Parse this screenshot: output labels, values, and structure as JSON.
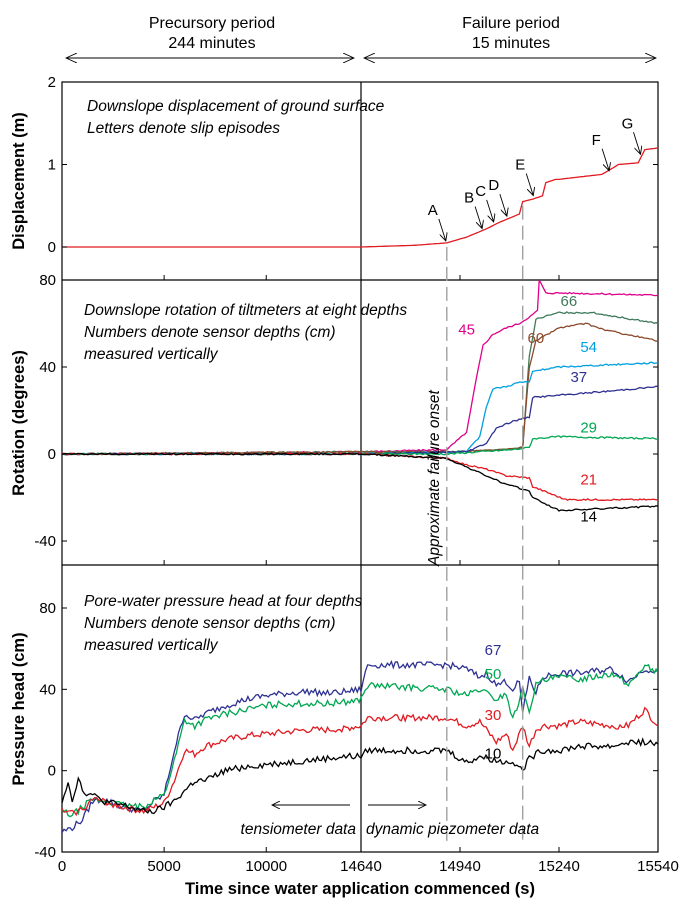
{
  "chart_data": {
    "type": "line",
    "header": {
      "left": {
        "line1": "Precursory period",
        "line2": "244 minutes"
      },
      "right": {
        "line1": "Failure period",
        "line2": "15 minutes"
      }
    },
    "x_axis": {
      "label": "Time since water application commenced (s)",
      "left_segment": {
        "range": [
          0,
          14640
        ],
        "ticks": [
          0,
          5000,
          10000,
          14640
        ]
      },
      "right_segment": {
        "range": [
          14640,
          15540
        ],
        "ticks": [
          14940,
          15240,
          15540
        ]
      }
    },
    "vertical_marker_x": 14640,
    "panels": [
      {
        "id": "displacement",
        "ylabel": "Displacement (m)",
        "ylim": [
          0,
          2
        ],
        "yticks": [
          0,
          1,
          2
        ],
        "annotation": [
          "Downslope displacement of ground surface",
          "Letters denote slip episodes"
        ],
        "series": [
          {
            "name": "displacement",
            "color": "#e01b22",
            "x": [
              0,
              14640,
              14800,
              14900,
              14960,
              15020,
              15060,
              15090,
              15120,
              15130,
              15160,
              15190,
              15200,
              15230,
              15240,
              15260,
              15370,
              15400,
              15420,
              15480,
              15500,
              15540
            ],
            "y": [
              0,
              0,
              0.02,
              0.05,
              0.12,
              0.22,
              0.3,
              0.35,
              0.4,
              0.55,
              0.58,
              0.62,
              0.78,
              0.82,
              0.82,
              0.83,
              0.88,
              0.95,
              1.0,
              1.02,
              1.18,
              1.2
            ]
          }
        ],
        "letters": [
          {
            "label": "A",
            "x": 14900,
            "y": 0.05
          },
          {
            "label": "B",
            "x": 15010,
            "y": 0.2
          },
          {
            "label": "C",
            "x": 15045,
            "y": 0.28
          },
          {
            "label": "D",
            "x": 15085,
            "y": 0.35
          },
          {
            "label": "E",
            "x": 15165,
            "y": 0.6
          },
          {
            "label": "F",
            "x": 15395,
            "y": 0.9
          },
          {
            "label": "G",
            "x": 15490,
            "y": 1.1
          }
        ]
      },
      {
        "id": "rotation",
        "ylabel": "Rotation (degrees)",
        "ylim": [
          -50,
          80
        ],
        "yticks": [
          -40,
          0,
          40,
          80
        ],
        "annotation": [
          "Downslope rotation of tiltmeters at eight depths",
          "Numbers denote sensor depths (cm)",
          "measured vertically"
        ],
        "failure_onset_label": "Approximate failure onset",
        "series": [
          {
            "name": "45",
            "color": "#e0008a",
            "x": [
              0,
              14640,
              14900,
              14960,
              14990,
              15010,
              15040,
              15080,
              15120,
              15140,
              15160,
              15175,
              15180,
              15200,
              15260,
              15540
            ],
            "y": [
              0,
              1,
              2,
              10,
              35,
              50,
              55,
              58,
              60,
              62,
              64,
              66,
              80,
              74,
              74,
              73
            ]
          },
          {
            "name": "66",
            "color": "#3f7a5a",
            "x": [
              0,
              14640,
              14900,
              15080,
              15130,
              15150,
              15170,
              15240,
              15340,
              15420,
              15540
            ],
            "y": [
              0,
              1,
              1,
              2,
              3,
              45,
              62,
              65,
              65,
              63,
              60
            ]
          },
          {
            "name": "60",
            "color": "#8b4a2b",
            "x": [
              0,
              14640,
              14900,
              15080,
              15130,
              15150,
              15170,
              15240,
              15320,
              15380,
              15540
            ],
            "y": [
              0,
              1,
              1,
              2,
              3,
              40,
              52,
              58,
              60,
              57,
              52
            ]
          },
          {
            "name": "54",
            "color": "#00a0e0",
            "x": [
              0,
              14640,
              14960,
              15000,
              15020,
              15040,
              15080,
              15120,
              15150,
              15160,
              15240,
              15540
            ],
            "y": [
              0,
              0,
              1,
              8,
              22,
              30,
              31,
              33,
              33,
              38,
              40,
              42
            ]
          },
          {
            "name": "37",
            "color": "#2e3192",
            "x": [
              0,
              14640,
              14960,
              15020,
              15050,
              15100,
              15150,
              15160,
              15240,
              15400,
              15540
            ],
            "y": [
              0,
              0,
              1,
              5,
              12,
              15,
              17,
              26,
              27,
              29,
              31
            ]
          },
          {
            "name": "29",
            "color": "#00a651",
            "x": [
              0,
              14640,
              14900,
              15000,
              15100,
              15150,
              15160,
              15240,
              15540
            ],
            "y": [
              0,
              0,
              0,
              1,
              2,
              3,
              7,
              8,
              7
            ]
          },
          {
            "name": "21",
            "color": "#e01b22",
            "x": [
              0,
              14640,
              14900,
              14960,
              15020,
              15080,
              15150,
              15160,
              15260,
              15540
            ],
            "y": [
              0,
              0,
              -2,
              -5,
              -7,
              -10,
              -11,
              -15,
              -21,
              -21
            ]
          },
          {
            "name": "14",
            "color": "#000000",
            "x": [
              0,
              14640,
              14900,
              14960,
              15020,
              15080,
              15150,
              15160,
              15240,
              15540
            ],
            "y": [
              0,
              0,
              -2,
              -6,
              -10,
              -14,
              -17,
              -20,
              -26,
              -24
            ]
          }
        ]
      },
      {
        "id": "pressure",
        "ylabel": "Pressure head (cm)",
        "ylim": [
          -40,
          90
        ],
        "yticks": [
          -40,
          0,
          40,
          80
        ],
        "annotation": [
          "Pore-water pressure head at four depths",
          "Numbers denote sensor depths (cm)",
          "measured vertically"
        ],
        "bottom_labels": {
          "left": "tensiometer data",
          "right": "dynamic piezometer data"
        },
        "series": [
          {
            "name": "67",
            "color": "#2e3192",
            "x": [
              0,
              500,
              1000,
              1500,
              2000,
              3000,
              4000,
              4500,
              5000,
              5500,
              6000,
              6500,
              7000,
              8000,
              9000,
              10000,
              11000,
              12000,
              13000,
              14000,
              14640,
              14660,
              14900,
              14960,
              15000,
              15020,
              15050,
              15080,
              15100,
              15120,
              15130,
              15150,
              15170,
              15190,
              15240,
              15300,
              15400,
              15450,
              15500,
              15540
            ],
            "y": [
              -30,
              -28,
              -24,
              -15,
              -14,
              -18,
              -20,
              -15,
              -12,
              10,
              28,
              25,
              28,
              32,
              35,
              37,
              38,
              39,
              38,
              39,
              40,
              52,
              52,
              50,
              46,
              48,
              42,
              44,
              40,
              44,
              28,
              46,
              38,
              46,
              48,
              48,
              50,
              44,
              50,
              49
            ]
          },
          {
            "name": "50",
            "color": "#00a651",
            "x": [
              0,
              500,
              1000,
              1500,
              2000,
              3000,
              4000,
              4500,
              5000,
              5500,
              6000,
              6500,
              7000,
              8000,
              9000,
              10000,
              11000,
              12000,
              13000,
              14000,
              14640,
              14660,
              14900,
              14960,
              15000,
              15050,
              15080,
              15100,
              15130,
              15150,
              15170,
              15190,
              15240,
              15300,
              15400,
              15450,
              15500,
              15540
            ],
            "y": [
              -20,
              -22,
              -18,
              -14,
              -15,
              -17,
              -18,
              -14,
              -12,
              5,
              25,
              22,
              25,
              28,
              30,
              32,
              33,
              33,
              33,
              34,
              35,
              42,
              40,
              37,
              40,
              35,
              38,
              25,
              40,
              30,
              42,
              44,
              46,
              45,
              48,
              42,
              52,
              48
            ]
          },
          {
            "name": "30",
            "color": "#e01b22",
            "x": [
              0,
              500,
              1000,
              1500,
              2000,
              3000,
              4000,
              4500,
              5000,
              5500,
              6000,
              6500,
              7000,
              8000,
              9000,
              10000,
              11000,
              12000,
              13000,
              14000,
              14640,
              14660,
              14900,
              14960,
              15000,
              15050,
              15080,
              15100,
              15130,
              15150,
              15170,
              15190,
              15240,
              15300,
              15400,
              15450,
              15500,
              15540
            ],
            "y": [
              -20,
              -21,
              -19,
              -14,
              -15,
              -18,
              -20,
              -18,
              -16,
              -5,
              10,
              8,
              12,
              15,
              17,
              18,
              19,
              20,
              20,
              21,
              22,
              26,
              26,
              22,
              24,
              14,
              18,
              10,
              22,
              12,
              20,
              22,
              22,
              24,
              22,
              22,
              30,
              22
            ]
          },
          {
            "name": "10",
            "color": "#000000",
            "x": [
              0,
              300,
              500,
              800,
              1000,
              1500,
              2000,
              3000,
              4000,
              4500,
              5000,
              5500,
              6000,
              6500,
              7000,
              8000,
              9000,
              10000,
              11000,
              12000,
              13000,
              14000,
              14640,
              14660,
              14900,
              14960,
              15000,
              15050,
              15080,
              15100,
              15130,
              15150,
              15170,
              15190,
              15240,
              15300,
              15400,
              15450,
              15500,
              15540
            ],
            "y": [
              -15,
              -5,
              -15,
              -3,
              -10,
              -12,
              -15,
              -17,
              -20,
              -20,
              -18,
              -15,
              -10,
              -5,
              -5,
              0,
              2,
              3,
              4,
              5,
              6,
              7,
              7,
              10,
              10,
              4,
              7,
              5,
              4,
              5,
              0,
              6,
              8,
              10,
              10,
              12,
              12,
              14,
              14,
              13
            ]
          }
        ]
      }
    ]
  }
}
